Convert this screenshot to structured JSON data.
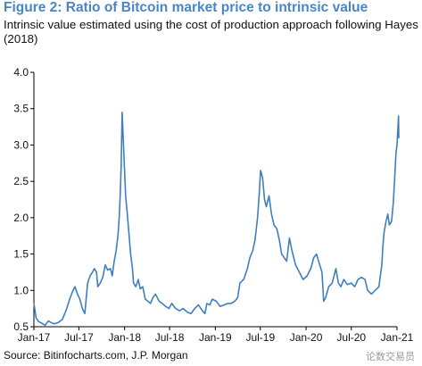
{
  "title": "Figure 2: Ratio of Bitcoin market price to intrinsic value",
  "subtitle": "Intrinsic value estimated using the cost of production approach following Hayes (2018)",
  "source": "Source: Bitinfocharts.com, J.P. Morgan",
  "watermark": "论数交易员",
  "colors": {
    "title": "#4a86c5",
    "line": "#3f7fc0",
    "axis": "#000000"
  },
  "chart_data": {
    "type": "line",
    "title": "Figure 2: Ratio of Bitcoin market price to intrinsic value",
    "subtitle": "Intrinsic value estimated using the cost of production approach following Hayes (2018)",
    "xlabel": "",
    "ylabel": "",
    "xlim": [
      "2017-01",
      "2021-01"
    ],
    "ylim": [
      0.5,
      4.0
    ],
    "y_ticks": [
      "0.5",
      "1.0",
      "1.5",
      "2.0",
      "2.5",
      "3.0",
      "3.5",
      "4.0"
    ],
    "x_ticks": [
      "Jan-17",
      "Jul-17",
      "Jan-18",
      "Jul-18",
      "Jan-19",
      "Jul-19",
      "Jan-20",
      "Jul-20",
      "Jan-21"
    ],
    "grid": false,
    "legend": "none",
    "series": [
      {
        "x": [
          "2017-01-01",
          "2017-01-10",
          "2017-01-20",
          "2017-02-01",
          "2017-02-15",
          "2017-03-01",
          "2017-03-15",
          "2017-03-25",
          "2017-04-10",
          "2017-04-25",
          "2017-05-10",
          "2017-05-25",
          "2017-06-05",
          "2017-06-15",
          "2017-06-25",
          "2017-07-05",
          "2017-07-15",
          "2017-07-25",
          "2017-08-05",
          "2017-08-15",
          "2017-08-25",
          "2017-09-01",
          "2017-09-10",
          "2017-09-15",
          "2017-09-25",
          "2017-10-05",
          "2017-10-15",
          "2017-10-25",
          "2017-11-05",
          "2017-11-12",
          "2017-11-20",
          "2017-11-28",
          "2017-12-05",
          "2017-12-10",
          "2017-12-14",
          "2017-12-18",
          "2017-12-22",
          "2017-12-28",
          "2018-01-05",
          "2018-01-12",
          "2018-01-18",
          "2018-01-25",
          "2018-02-01",
          "2018-02-06",
          "2018-02-15",
          "2018-02-25",
          "2018-03-05",
          "2018-03-15",
          "2018-03-25",
          "2018-04-05",
          "2018-04-15",
          "2018-04-25",
          "2018-05-05",
          "2018-05-20",
          "2018-06-01",
          "2018-06-15",
          "2018-06-28",
          "2018-07-10",
          "2018-07-25",
          "2018-08-10",
          "2018-08-25",
          "2018-09-10",
          "2018-09-25",
          "2018-10-10",
          "2018-10-25",
          "2018-11-10",
          "2018-11-20",
          "2018-11-28",
          "2018-12-10",
          "2018-12-20",
          "2019-01-05",
          "2019-01-20",
          "2019-02-05",
          "2019-02-20",
          "2019-03-05",
          "2019-03-20",
          "2019-04-01",
          "2019-04-10",
          "2019-04-25",
          "2019-05-10",
          "2019-05-20",
          "2019-06-01",
          "2019-06-10",
          "2019-06-20",
          "2019-06-26",
          "2019-07-02",
          "2019-07-10",
          "2019-07-18",
          "2019-07-25",
          "2019-08-05",
          "2019-08-15",
          "2019-08-25",
          "2019-09-05",
          "2019-09-15",
          "2019-09-25",
          "2019-10-05",
          "2019-10-15",
          "2019-10-26",
          "2019-11-05",
          "2019-11-20",
          "2019-12-05",
          "2019-12-20",
          "2020-01-05",
          "2020-01-20",
          "2020-02-01",
          "2020-02-12",
          "2020-02-25",
          "2020-03-05",
          "2020-03-12",
          "2020-03-20",
          "2020-04-01",
          "2020-04-15",
          "2020-04-30",
          "2020-05-10",
          "2020-05-20",
          "2020-06-01",
          "2020-06-15",
          "2020-07-01",
          "2020-07-15",
          "2020-07-28",
          "2020-08-10",
          "2020-08-25",
          "2020-09-05",
          "2020-09-20",
          "2020-10-05",
          "2020-10-20",
          "2020-10-25",
          "2020-11-01",
          "2020-11-05",
          "2020-11-10",
          "2020-11-18",
          "2020-11-25",
          "2020-12-01",
          "2020-12-10",
          "2020-12-17",
          "2020-12-22",
          "2020-12-28",
          "2021-01-01",
          "2021-01-03",
          "2021-01-05",
          "2021-01-07",
          "2021-01-08"
        ],
        "y": [
          0.82,
          0.62,
          0.57,
          0.55,
          0.52,
          0.58,
          0.55,
          0.54,
          0.56,
          0.6,
          0.72,
          0.88,
          0.98,
          1.05,
          0.95,
          0.88,
          0.75,
          0.68,
          1.1,
          1.2,
          1.25,
          1.3,
          1.25,
          1.05,
          1.1,
          1.18,
          1.35,
          1.28,
          1.3,
          1.2,
          1.4,
          1.55,
          1.75,
          2.0,
          2.3,
          2.7,
          3.45,
          2.95,
          2.3,
          2.05,
          1.8,
          1.5,
          1.32,
          1.1,
          1.05,
          1.15,
          1.02,
          1.05,
          0.88,
          0.85,
          0.82,
          0.9,
          0.95,
          0.85,
          0.82,
          0.78,
          0.75,
          0.82,
          0.75,
          0.72,
          0.75,
          0.7,
          0.68,
          0.75,
          0.8,
          0.72,
          0.68,
          0.82,
          0.8,
          0.88,
          0.85,
          0.78,
          0.8,
          0.82,
          0.82,
          0.85,
          0.9,
          1.1,
          1.15,
          1.3,
          1.45,
          1.55,
          1.7,
          2.0,
          2.3,
          2.65,
          2.55,
          2.25,
          2.15,
          2.3,
          2.05,
          1.9,
          1.85,
          1.7,
          1.5,
          1.45,
          1.4,
          1.72,
          1.55,
          1.35,
          1.25,
          1.15,
          1.2,
          1.3,
          1.45,
          1.5,
          1.35,
          1.25,
          0.85,
          0.9,
          1.05,
          1.1,
          1.3,
          1.1,
          1.05,
          1.15,
          1.08,
          1.1,
          1.05,
          1.15,
          1.18,
          1.15,
          1.0,
          0.95,
          1.0,
          1.05,
          1.18,
          1.35,
          1.6,
          1.8,
          1.95,
          2.05,
          1.9,
          1.95,
          2.2,
          2.5,
          2.9,
          3.0,
          3.15,
          3.25,
          3.4,
          3.1
        ]
      }
    ]
  }
}
